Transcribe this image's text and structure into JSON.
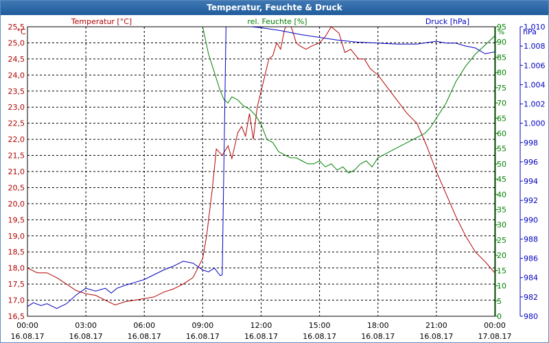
{
  "window": {
    "title": "Temperatur, Feuchte & Druck"
  },
  "chart_data": {
    "type": "line",
    "title": "Temperatur, Feuchte & Druck",
    "grid": true,
    "colors": {
      "temperature": "#b00000",
      "humidity": "#008000",
      "pressure": "#0000c0",
      "grid": "#000000"
    },
    "x_ticks": [
      {
        "time": "00:00",
        "date": "16.08.17"
      },
      {
        "time": "03:00",
        "date": "16.08.17"
      },
      {
        "time": "06:00",
        "date": "16.08.17"
      },
      {
        "time": "09:00",
        "date": "16.08.17"
      },
      {
        "time": "12:00",
        "date": "16.08.17"
      },
      {
        "time": "15:00",
        "date": "16.08.17"
      },
      {
        "time": "18:00",
        "date": "16.08.17"
      },
      {
        "time": "21:00",
        "date": "16.08.17"
      },
      {
        "time": "00:00",
        "date": "17.08.17"
      }
    ],
    "axes": {
      "temperature": {
        "header": "Temperatur [°C]",
        "unit": "°C",
        "min": 16.5,
        "max": 25.5,
        "ticks": [
          "16,5",
          "17,0",
          "17,5",
          "18,0",
          "18,5",
          "19,0",
          "19,5",
          "20,0",
          "20,5",
          "21,0",
          "21,5",
          "22,0",
          "22,5",
          "23,0",
          "23,5",
          "24,0",
          "24,5",
          "25,0",
          "25,5"
        ]
      },
      "humidity": {
        "header": "rel. Feuchte [%]",
        "unit": "%",
        "min": 0,
        "max": 95,
        "ticks": [
          "0",
          "5",
          "10",
          "15",
          "20",
          "25",
          "30",
          "35",
          "40",
          "45",
          "50",
          "55",
          "60",
          "65",
          "70",
          "75",
          "80",
          "85",
          "90",
          "95"
        ]
      },
      "pressure": {
        "header": "Druck [hPa]",
        "unit": "hPa",
        "min": 980,
        "max": 1010,
        "ticks": [
          "980",
          "982",
          "984",
          "986",
          "988",
          "990",
          "992",
          "994",
          "996",
          "998",
          "1.000",
          "1.002",
          "1.004",
          "1.006",
          "1.008",
          "1.010"
        ]
      }
    },
    "series": [
      {
        "name": "Temperatur [°C]",
        "axis": "temperature",
        "x_hours": [
          0,
          0.5,
          1,
          1.5,
          2,
          2.5,
          3,
          3.5,
          4,
          4.5,
          5,
          5.5,
          6,
          6.5,
          7,
          7.5,
          8,
          8.5,
          9,
          9.2,
          9.5,
          9.7,
          10,
          10.3,
          10.5,
          10.8,
          11,
          11.2,
          11.4,
          11.6,
          11.8,
          12,
          12.2,
          12.4,
          12.6,
          12.8,
          13,
          13.2,
          13.4,
          13.6,
          13.8,
          14,
          14.3,
          14.6,
          15,
          15.3,
          15.6,
          16,
          16.3,
          16.6,
          17,
          17.3,
          17.6,
          18,
          18.5,
          19,
          19.5,
          20,
          20.5,
          21,
          21.5,
          22,
          22.5,
          23,
          23.5,
          24
        ],
        "values": [
          18.0,
          17.85,
          17.85,
          17.7,
          17.5,
          17.3,
          17.2,
          17.15,
          17.0,
          16.85,
          16.95,
          17.0,
          17.05,
          17.1,
          17.25,
          17.35,
          17.5,
          17.7,
          18.3,
          19.0,
          20.5,
          21.7,
          21.5,
          21.8,
          21.4,
          22.2,
          22.4,
          22.1,
          22.8,
          22.0,
          23.0,
          23.5,
          24.0,
          24.5,
          24.6,
          25.0,
          24.8,
          25.4,
          25.7,
          25.4,
          25.0,
          24.9,
          24.8,
          24.9,
          25.0,
          25.2,
          25.5,
          25.3,
          24.7,
          24.8,
          24.5,
          24.5,
          24.2,
          24.0,
          23.6,
          23.2,
          22.8,
          22.5,
          21.8,
          21.0,
          20.3,
          19.6,
          19.0,
          18.5,
          18.2,
          17.85
        ]
      },
      {
        "name": "rel. Feuchte [%]",
        "axis": "humidity",
        "x_hours": [
          8.9,
          9.1,
          9.3,
          9.5,
          9.7,
          9.9,
          10.1,
          10.3,
          10.5,
          10.8,
          11.1,
          11.4,
          11.7,
          12.0,
          12.3,
          12.6,
          12.9,
          13.2,
          13.5,
          13.8,
          14.1,
          14.4,
          14.7,
          15.0,
          15.3,
          15.6,
          15.9,
          16.2,
          16.5,
          16.8,
          17.1,
          17.4,
          17.7,
          18.0,
          18.3,
          18.6,
          18.9,
          19.2,
          19.5,
          19.8,
          20.1,
          20.4,
          20.7,
          21.0,
          21.5,
          22.0,
          22.5,
          23.0,
          23.5,
          24.0
        ],
        "values": [
          98,
          92,
          86,
          82,
          78,
          74,
          71,
          70,
          72,
          71,
          69,
          68,
          66,
          63,
          58,
          57,
          54,
          53,
          52,
          52,
          51,
          50,
          50,
          51,
          49,
          50,
          48,
          49,
          47,
          48,
          50,
          51,
          49,
          52,
          53,
          54,
          55,
          56,
          57,
          58,
          59,
          60,
          62,
          65,
          70,
          77,
          82,
          86,
          89,
          92
        ]
      },
      {
        "name": "Druck [hPa]",
        "axis": "pressure",
        "x_hours": [
          0,
          0.3,
          0.7,
          1,
          1.5,
          2,
          2.5,
          3,
          3.5,
          4,
          4.3,
          4.6,
          5,
          5.5,
          6,
          6.5,
          7,
          7.5,
          8,
          8.5,
          9,
          9.3,
          9.6,
          9.9,
          10,
          10.2,
          10.4,
          10.6,
          11,
          11.5,
          12,
          13,
          14,
          15,
          16,
          17,
          18,
          19,
          20,
          21,
          21.5,
          22,
          22.5,
          23,
          23.5,
          24
        ],
        "values": [
          981.0,
          981.4,
          981.1,
          981.3,
          980.8,
          981.3,
          982.2,
          982.9,
          982.6,
          982.9,
          982.4,
          982.9,
          983.2,
          983.5,
          983.8,
          984.3,
          984.8,
          985.2,
          985.7,
          985.5,
          984.8,
          984.6,
          985.0,
          984.2,
          984.3,
          1010.2,
          1010.3,
          1010.1,
          1010.2,
          1010.0,
          1009.9,
          1009.6,
          1009.2,
          1008.9,
          1008.6,
          1008.4,
          1008.3,
          1008.2,
          1008.2,
          1008.5,
          1008.3,
          1008.3,
          1008.0,
          1007.8,
          1007.2,
          1007.4
        ]
      }
    ]
  }
}
